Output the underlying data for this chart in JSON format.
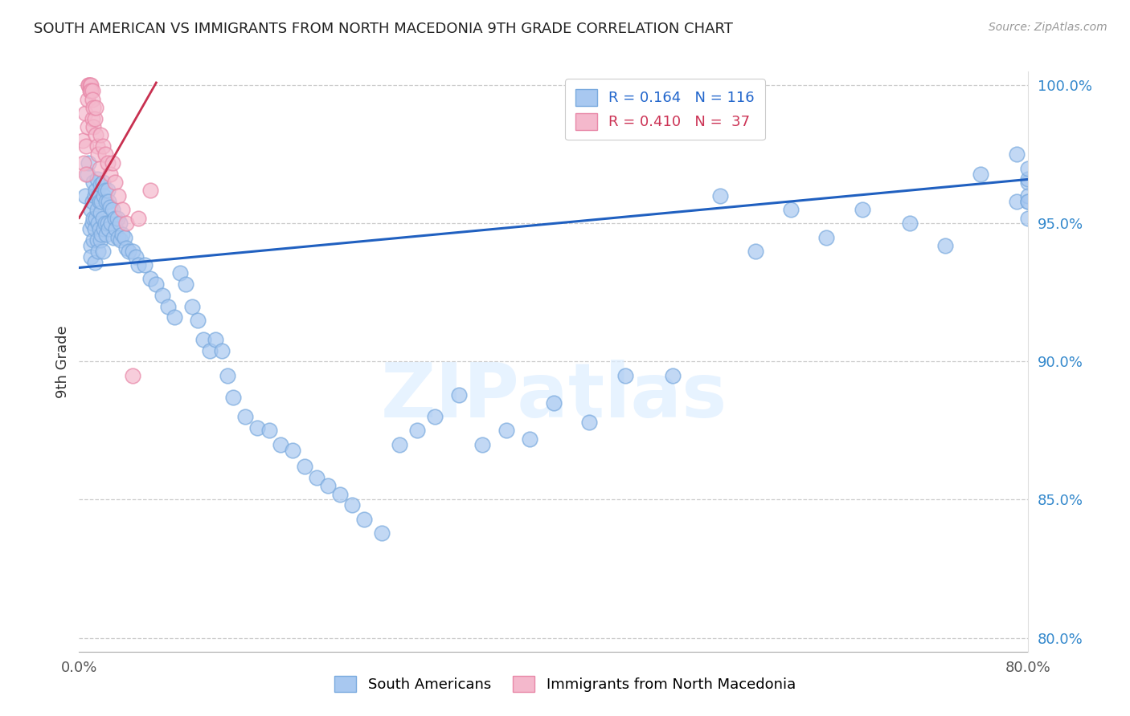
{
  "title": "SOUTH AMERICAN VS IMMIGRANTS FROM NORTH MACEDONIA 9TH GRADE CORRELATION CHART",
  "source": "Source: ZipAtlas.com",
  "ylabel": "9th Grade",
  "xlim": [
    0.0,
    0.8
  ],
  "ylim": [
    0.795,
    1.005
  ],
  "ytick_vals": [
    0.8,
    0.85,
    0.9,
    0.95,
    1.0
  ],
  "ytick_labels": [
    "80.0%",
    "85.0%",
    "90.0%",
    "95.0%",
    "100.0%"
  ],
  "legend1_R": "0.164",
  "legend1_N": "116",
  "legend2_R": "0.410",
  "legend2_N": " 37",
  "blue_color": "#a8c8f0",
  "blue_edge": "#7aaade",
  "pink_color": "#f4b8cc",
  "pink_edge": "#e888a8",
  "trend_blue": "#2060c0",
  "trend_pink": "#c83050",
  "watermark": "ZIPatlas",
  "blue_trend_x": [
    0.0,
    0.8
  ],
  "blue_trend_y": [
    0.934,
    0.966
  ],
  "pink_trend_x": [
    0.0,
    0.065
  ],
  "pink_trend_y": [
    0.952,
    1.001
  ],
  "blue_x": [
    0.005,
    0.007,
    0.008,
    0.009,
    0.01,
    0.01,
    0.01,
    0.011,
    0.011,
    0.012,
    0.012,
    0.012,
    0.013,
    0.013,
    0.013,
    0.014,
    0.014,
    0.015,
    0.015,
    0.015,
    0.016,
    0.016,
    0.016,
    0.017,
    0.017,
    0.018,
    0.018,
    0.018,
    0.019,
    0.019,
    0.02,
    0.02,
    0.02,
    0.021,
    0.021,
    0.022,
    0.022,
    0.023,
    0.023,
    0.024,
    0.024,
    0.025,
    0.025,
    0.026,
    0.027,
    0.028,
    0.029,
    0.03,
    0.031,
    0.032,
    0.033,
    0.034,
    0.035,
    0.036,
    0.038,
    0.04,
    0.042,
    0.045,
    0.048,
    0.05,
    0.055,
    0.06,
    0.065,
    0.07,
    0.075,
    0.08,
    0.085,
    0.09,
    0.095,
    0.1,
    0.105,
    0.11,
    0.115,
    0.12,
    0.125,
    0.13,
    0.14,
    0.15,
    0.16,
    0.17,
    0.18,
    0.19,
    0.2,
    0.21,
    0.22,
    0.23,
    0.24,
    0.255,
    0.27,
    0.285,
    0.3,
    0.32,
    0.34,
    0.36,
    0.38,
    0.4,
    0.43,
    0.46,
    0.5,
    0.54,
    0.57,
    0.6,
    0.63,
    0.66,
    0.7,
    0.73,
    0.76,
    0.79,
    0.79,
    0.8,
    0.8,
    0.8,
    0.8,
    0.8,
    0.8,
    0.8
  ],
  "blue_y": [
    0.96,
    0.968,
    0.972,
    0.948,
    0.955,
    0.942,
    0.938,
    0.958,
    0.95,
    0.965,
    0.952,
    0.944,
    0.96,
    0.948,
    0.936,
    0.962,
    0.952,
    0.966,
    0.955,
    0.944,
    0.96,
    0.95,
    0.94,
    0.958,
    0.948,
    0.964,
    0.954,
    0.944,
    0.958,
    0.946,
    0.965,
    0.952,
    0.94,
    0.96,
    0.948,
    0.962,
    0.95,
    0.958,
    0.946,
    0.962,
    0.95,
    0.958,
    0.948,
    0.956,
    0.95,
    0.955,
    0.945,
    0.952,
    0.948,
    0.952,
    0.945,
    0.95,
    0.944,
    0.946,
    0.945,
    0.941,
    0.94,
    0.94,
    0.938,
    0.935,
    0.935,
    0.93,
    0.928,
    0.924,
    0.92,
    0.916,
    0.932,
    0.928,
    0.92,
    0.915,
    0.908,
    0.904,
    0.908,
    0.904,
    0.895,
    0.887,
    0.88,
    0.876,
    0.875,
    0.87,
    0.868,
    0.862,
    0.858,
    0.855,
    0.852,
    0.848,
    0.843,
    0.838,
    0.87,
    0.875,
    0.88,
    0.888,
    0.87,
    0.875,
    0.872,
    0.885,
    0.878,
    0.895,
    0.895,
    0.96,
    0.94,
    0.955,
    0.945,
    0.955,
    0.95,
    0.942,
    0.968,
    0.958,
    0.975,
    0.965,
    0.958,
    0.96,
    0.952,
    0.966,
    0.958,
    0.97
  ],
  "pink_x": [
    0.003,
    0.004,
    0.005,
    0.006,
    0.006,
    0.007,
    0.007,
    0.008,
    0.008,
    0.009,
    0.009,
    0.01,
    0.01,
    0.011,
    0.011,
    0.011,
    0.012,
    0.012,
    0.013,
    0.014,
    0.014,
    0.015,
    0.016,
    0.017,
    0.018,
    0.02,
    0.022,
    0.024,
    0.026,
    0.028,
    0.03,
    0.033,
    0.036,
    0.04,
    0.045,
    0.05,
    0.06
  ],
  "pink_y": [
    0.98,
    0.972,
    0.99,
    0.978,
    0.968,
    0.995,
    0.985,
    1.0,
    1.0,
    1.0,
    0.998,
    1.0,
    0.998,
    0.998,
    0.995,
    0.988,
    0.992,
    0.985,
    0.988,
    0.992,
    0.982,
    0.978,
    0.975,
    0.97,
    0.982,
    0.978,
    0.975,
    0.972,
    0.968,
    0.972,
    0.965,
    0.96,
    0.955,
    0.95,
    0.895,
    0.952,
    0.962
  ]
}
